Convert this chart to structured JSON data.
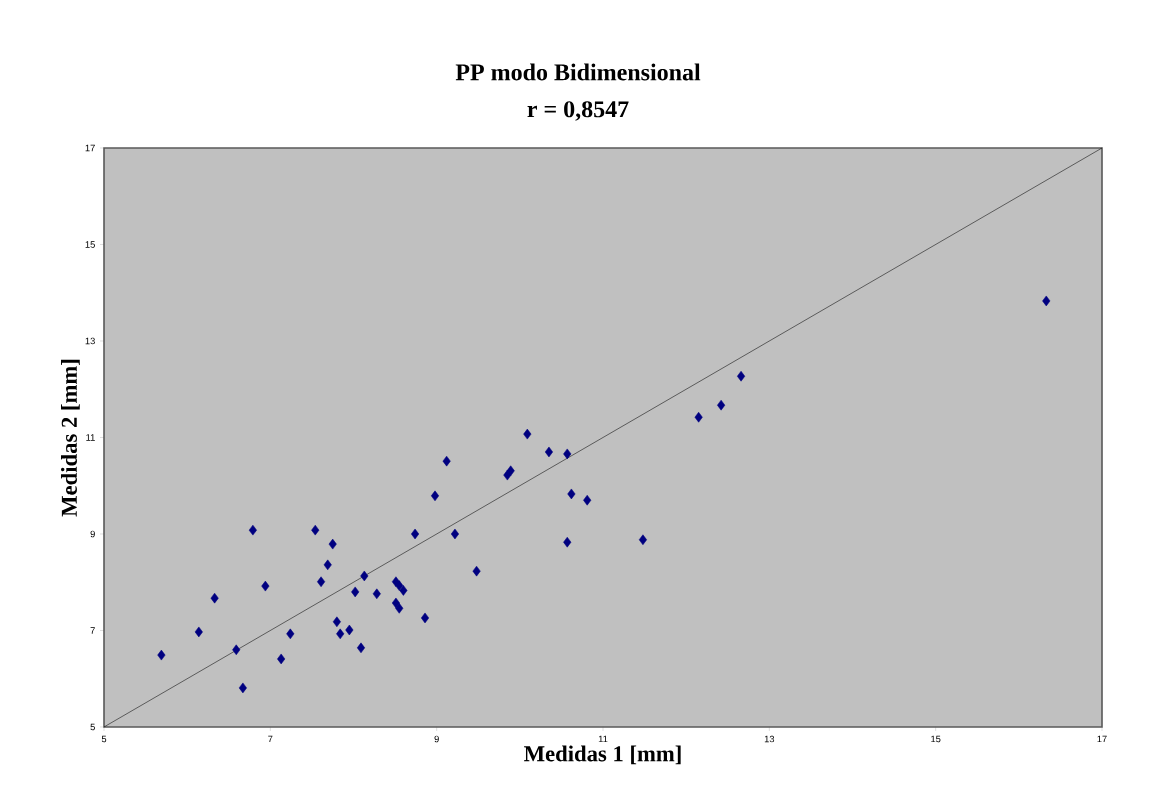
{
  "chart_data": {
    "type": "scatter",
    "title": "PP modo Bidimensional",
    "subtitle": "r = 0,8547",
    "xlabel": "Medidas 1 [mm]",
    "ylabel": "Medidas 2 [mm]",
    "xlim": [
      5,
      17
    ],
    "ylim": [
      5,
      17
    ],
    "xticks": [
      5,
      7,
      9,
      11,
      13,
      15,
      17
    ],
    "yticks": [
      5,
      7,
      9,
      11,
      13,
      15,
      17
    ],
    "marker": "diamond",
    "series": [
      {
        "color": "#000080",
        "x": [
          5.69,
          6.14,
          6.33,
          6.59,
          6.67,
          6.79,
          6.94,
          7.13,
          7.24,
          7.54,
          7.61,
          7.69,
          7.75,
          7.8,
          7.84,
          7.95,
          8.02,
          8.09,
          8.13,
          8.28,
          8.51,
          8.55,
          8.51,
          8.55,
          8.6,
          8.86,
          8.74,
          8.98,
          9.12,
          9.22,
          9.48,
          9.85,
          9.89,
          10.09,
          10.35,
          10.57,
          10.62,
          10.81,
          10.57,
          11.48,
          12.15,
          12.42,
          12.66,
          16.33
        ],
        "values": [
          6.49,
          6.97,
          7.67,
          6.6,
          5.81,
          9.08,
          7.92,
          6.41,
          6.93,
          9.08,
          8.01,
          8.36,
          8.79,
          7.18,
          6.93,
          7.01,
          7.8,
          6.64,
          8.13,
          7.76,
          8.01,
          7.93,
          7.57,
          7.46,
          7.83,
          7.26,
          9.0,
          9.79,
          10.51,
          9.0,
          8.23,
          10.22,
          10.31,
          11.07,
          10.7,
          10.66,
          9.83,
          9.7,
          8.83,
          8.88,
          11.42,
          11.67,
          12.27,
          13.83
        ]
      },
      {
        "type": "line",
        "color": "#000000",
        "line_style": "solid",
        "marker": "none",
        "x": [
          5,
          17
        ],
        "values": [
          5,
          17
        ]
      }
    ]
  }
}
